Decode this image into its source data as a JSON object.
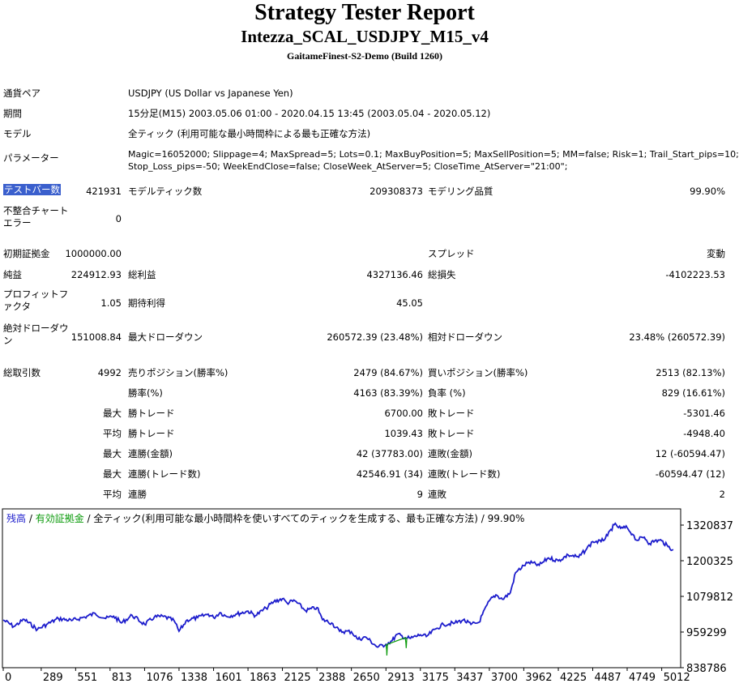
{
  "header": {
    "title": "Strategy Tester Report",
    "ea_name": "Intezza_SCAL_USDJPY_M15_v4",
    "server": "GaitameFinest-S2-Demo (Build 1260)"
  },
  "info": {
    "pair_label": "通貨ペア",
    "pair_value": "USDJPY (US Dollar vs Japanese Yen)",
    "period_label": "期間",
    "period_value": "15分足(M15) 2003.05.06 01:00 - 2020.04.15 13:45 (2003.05.04 - 2020.05.12)",
    "model_label": "モデル",
    "model_value": "全ティック (利用可能な最小時間枠による最も正確な方法)",
    "param_label": "パラメーター",
    "param_line1": "Magic=16052000; Slippage=4; MaxSpread=5; Lots=0.1; MaxBuyPosition=5; MaxSellPosition=5; MM=false; Risk=1; Trail_Start_pips=10;",
    "param_line2": "Stop_Loss_pips=-50; WeekEndClose=false; CloseWeek_AtServer=5; CloseTime_AtServer=\"21:00\";"
  },
  "stats": {
    "bars_label": "テストバー数",
    "bars_value": "421931",
    "ticks_label": "モデルティック数",
    "ticks_value": "209308373",
    "quality_label": "モデリング品質",
    "quality_value": "99.90%",
    "mismatch_label": "不整合チャートエラー",
    "mismatch_value": "0",
    "deposit_label": "初期証拠金",
    "deposit_value": "1000000.00",
    "spread_label": "スプレッド",
    "spread_value": "変動",
    "net_label": "純益",
    "net_value": "224912.93",
    "gross_profit_label": "総利益",
    "gross_profit_value": "4327136.46",
    "gross_loss_label": "総損失",
    "gross_loss_value": "-4102223.53",
    "pf_label": "プロフィットファクタ",
    "pf_value": "1.05",
    "expected_label": "期待利得",
    "expected_value": "45.05",
    "abs_dd_label": "絶対ドローダウン",
    "abs_dd_value": "151008.84",
    "max_dd_label": "最大ドローダウン",
    "max_dd_value": "260572.39 (23.48%)",
    "rel_dd_label": "相対ドローダウン",
    "rel_dd_value": "23.48% (260572.39)",
    "total_trades_label": "総取引数",
    "total_trades_value": "4992",
    "short_label": "売りポジション(勝率%)",
    "short_value": "2479 (84.67%)",
    "long_label": "買いポジション(勝率%)",
    "long_value": "2513 (82.13%)",
    "win_rate_label": "勝率(%)",
    "win_rate_value": "4163 (83.39%)",
    "loss_rate_label": "負率 (%)",
    "loss_rate_value": "829 (16.61%)",
    "largest": "最大",
    "average": "平均",
    "win_trade_label": "勝トレード",
    "loss_trade_label": "敗トレード",
    "largest_win_value": "6700.00",
    "largest_loss_value": "-5301.46",
    "avg_win_value": "1039.43",
    "avg_loss_value": "-4948.40",
    "cons_wins_amount_label": "連勝(金額)",
    "cons_wins_amount_value": "42 (37783.00)",
    "cons_losses_amount_label": "連敗(金額)",
    "cons_losses_amount_value": "12 (-60594.47)",
    "cons_wins_trades_label": "連勝(トレード数)",
    "cons_wins_trades_value": "42546.91 (34)",
    "cons_losses_trades_label": "連敗(トレード数)",
    "cons_losses_trades_value": "-60594.47 (12)",
    "cons_wins_label": "連勝",
    "cons_wins_value": "9",
    "cons_losses_label": "連敗",
    "cons_losses_value": "2"
  },
  "legend": {
    "balance": "残高",
    "sep1": " / ",
    "equity": "有効証拠金",
    "rest": " / 全ティック(利用可能な最小時間枠を使いすべてのティックを生成する、最も正確な方法) / 99.90%"
  },
  "colors": {
    "balance": "#1c1ccc",
    "equity": "#0a9a0a",
    "highlight": "#3a5fcd"
  },
  "chart_data": {
    "type": "line",
    "title": "",
    "xlabel": "",
    "ylabel": "",
    "x_ticks": [
      "0",
      "289",
      "551",
      "813",
      "1076",
      "1338",
      "1601",
      "1863",
      "2125",
      "2388",
      "2650",
      "2913",
      "3175",
      "3437",
      "3700",
      "3962",
      "4225",
      "4487",
      "4749",
      "5012"
    ],
    "y_ticks": [
      "1320837",
      "1200325",
      "1079812",
      "959299",
      "838786"
    ],
    "xlim": [
      0,
      5150
    ],
    "ylim": [
      838786,
      1320837
    ],
    "grid": false,
    "series": [
      {
        "name": "残高",
        "x": [
          0,
          80,
          160,
          260,
          330,
          420,
          520,
          620,
          700,
          780,
          840,
          900,
          980,
          1076,
          1150,
          1220,
          1300,
          1338,
          1400,
          1480,
          1560,
          1601,
          1650,
          1700,
          1780,
          1863,
          1920,
          2000,
          2060,
          2125,
          2160,
          2220,
          2300,
          2388,
          2430,
          2500,
          2560,
          2650,
          2700,
          2760,
          2850,
          2913,
          2960,
          3000,
          3060,
          3100,
          3175,
          3220,
          3300,
          3350,
          3437,
          3500,
          3560,
          3620,
          3700,
          3750,
          3800,
          3860,
          3900,
          3962,
          4000,
          4080,
          4150,
          4225,
          4300,
          4380,
          4440,
          4487,
          4550,
          4600,
          4650,
          4700,
          4749,
          4790,
          4820,
          4880,
          4920,
          4960,
          5012,
          5060,
          5100
        ],
        "values": [
          1000000,
          978000,
          1002000,
          968000,
          985000,
          1005000,
          998000,
          1010000,
          1022000,
          1005000,
          1013000,
          990000,
          1016000,
          985000,
          1010000,
          1012000,
          998000,
          962000,
          1000000,
          1008000,
          1020000,
          1008000,
          1025000,
          1012000,
          1020000,
          1030000,
          1015000,
          1040000,
          1062000,
          1072000,
          1058000,
          1065000,
          1032000,
          1042000,
          1001000,
          990000,
          962000,
          960000,
          935000,
          942000,
          908000,
          918000,
          930000,
          952000,
          940000,
          938000,
          950000,
          944000,
          972000,
          985000,
          990000,
          1000000,
          985000,
          992000,
          1065000,
          1085000,
          1070000,
          1092000,
          1160000,
          1184000,
          1195000,
          1185000,
          1210000,
          1200000,
          1220000,
          1212000,
          1240000,
          1265000,
          1265000,
          1285000,
          1322000,
          1310000,
          1312000,
          1290000,
          1270000,
          1280000,
          1258000,
          1268000,
          1268000,
          1248000,
          1238000
        ]
      },
      {
        "name": "有効証拠金",
        "x": [
          2913,
          2918,
          2920,
          2925,
          3060,
          3065,
          3067,
          3072
        ],
        "values": [
          918000,
          900000,
          880000,
          918000,
          940000,
          922000,
          905000,
          940000
        ]
      }
    ]
  }
}
